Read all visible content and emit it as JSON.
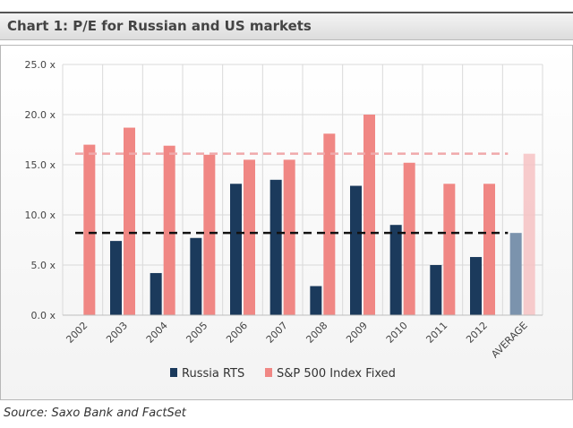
{
  "header": {
    "title": "Chart 1: P/E for Russian and US markets"
  },
  "footer": {
    "source": "Source: Saxo Bank and FactSet"
  },
  "colors": {
    "russia": "#1b3a5c",
    "sp500": "#f08784",
    "russia_avg": "#7b93ad",
    "sp500_avg": "#f6c2c3",
    "grid": "#d9d9d9"
  },
  "chart_data": {
    "type": "bar",
    "title": "Chart 1: P/E for Russian and US markets",
    "categories": [
      "2002",
      "2003",
      "2004",
      "2005",
      "2006",
      "2007",
      "2008",
      "2009",
      "2010",
      "2011",
      "2012",
      "AVERAGE"
    ],
    "series": [
      {
        "name": "Russia RTS",
        "values": [
          null,
          7.4,
          4.2,
          7.7,
          13.1,
          13.5,
          2.9,
          12.9,
          9.0,
          5.0,
          5.8,
          8.2
        ]
      },
      {
        "name": "S&P 500 Index Fixed",
        "values": [
          17.0,
          18.7,
          16.9,
          16.0,
          15.5,
          15.5,
          18.1,
          20.0,
          15.2,
          13.1,
          13.1,
          16.1
        ]
      }
    ],
    "reference_lines": [
      {
        "series": "Russia RTS",
        "label": "average",
        "value": 8.2
      },
      {
        "series": "S&P 500 Index Fixed",
        "label": "average",
        "value": 16.1
      }
    ],
    "ylim": [
      0,
      25
    ],
    "yticks": [
      "0.0 x",
      "5.0 x",
      "10.0 x",
      "15.0 x",
      "20.0 x",
      "25.0 x"
    ],
    "ytick_values": [
      0,
      5,
      10,
      15,
      20,
      25
    ],
    "legend_position": "bottom",
    "xlabel": "",
    "ylabel": ""
  }
}
